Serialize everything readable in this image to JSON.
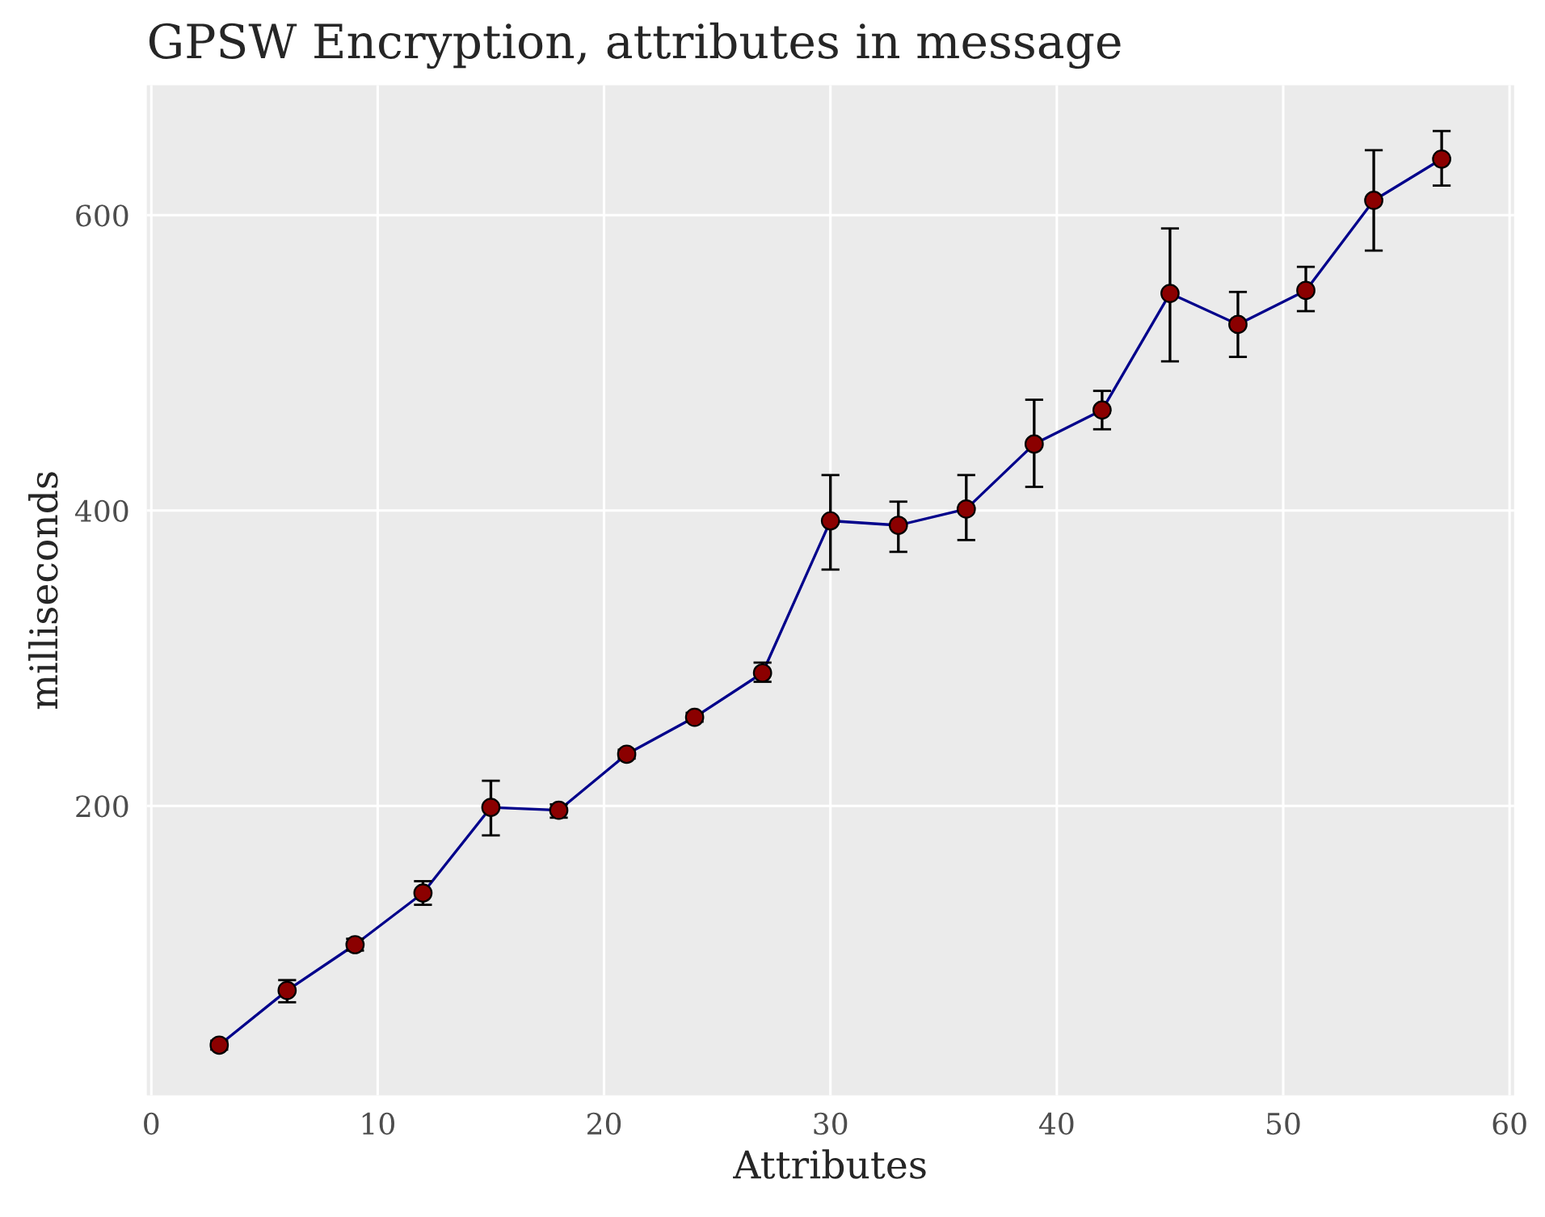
{
  "chart_data": {
    "type": "line",
    "title": "GPSW Encryption, attributes in message",
    "xlabel": "Attributes",
    "ylabel": "milliseconds",
    "x": [
      3,
      6,
      9,
      12,
      15,
      18,
      21,
      24,
      27,
      30,
      33,
      36,
      39,
      42,
      45,
      48,
      51,
      54,
      57
    ],
    "series": [
      {
        "color": "#00008b",
        "colors": [
          "#8b0000",
          "#8b0000",
          "#8b0000",
          "#8b0000",
          "#8b0000",
          "#8b0000",
          "#8b0000",
          "#8b0000",
          "#8b0000",
          "#8b0000",
          "#8b0000",
          "#8b0000",
          "#8b0000",
          "#8b0000",
          "#8b0000",
          "#8b0000",
          "#8b0000",
          "#8b0000",
          "#8b0000"
        ],
        "values": [
          38,
          75,
          106,
          141,
          199,
          197,
          235,
          260,
          290,
          393,
          390,
          401,
          445,
          468,
          547,
          526,
          549,
          610,
          638
        ],
        "errors": [
          [
            35,
            41
          ],
          [
            67,
            82
          ],
          [
            102,
            110
          ],
          [
            133,
            149
          ],
          [
            180,
            217
          ],
          [
            192,
            201
          ],
          [
            232,
            238
          ],
          [
            257,
            263
          ],
          [
            284,
            297
          ],
          [
            360,
            424
          ],
          [
            372,
            406
          ],
          [
            380,
            424
          ],
          [
            416,
            475
          ],
          [
            455,
            481
          ],
          [
            501,
            591
          ],
          [
            504,
            548
          ],
          [
            535,
            565
          ],
          [
            576,
            644
          ],
          [
            620,
            657
          ]
        ]
      }
    ],
    "xlim": [
      -0.2,
      60.2
    ],
    "ylim": [
      4,
      688
    ],
    "xticks": [
      0,
      10,
      20,
      30,
      40,
      50,
      60
    ],
    "yticks": [
      200,
      400,
      600
    ],
    "grid": true,
    "marker": "circle",
    "line_style": "solid"
  }
}
